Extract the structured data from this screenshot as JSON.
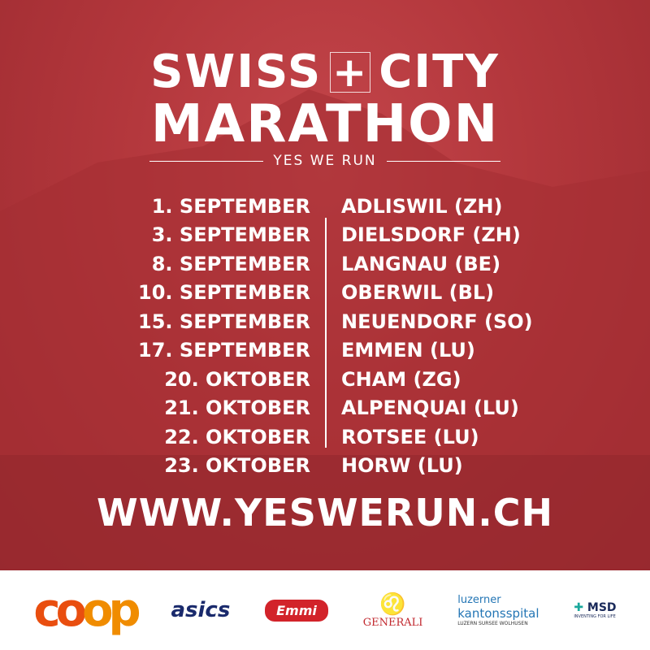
{
  "title": {
    "line1_left": "SWISS",
    "line1_right": "CITY",
    "cross": "+",
    "line2": "MARATHON",
    "tagline": "YES WE RUN"
  },
  "events": [
    {
      "date": "1. SEPTEMBER",
      "location": "ADLISWIL (ZH)"
    },
    {
      "date": "3. SEPTEMBER",
      "location": "DIELSDORF (ZH)"
    },
    {
      "date": "8. SEPTEMBER",
      "location": "LANGNAU (BE)"
    },
    {
      "date": "10. SEPTEMBER",
      "location": "OBERWIL (BL)"
    },
    {
      "date": "15. SEPTEMBER",
      "location": "NEUENDORF (SO)"
    },
    {
      "date": "17. SEPTEMBER",
      "location": "EMMEN (LU)"
    },
    {
      "date": "20. OKTOBER",
      "location": "CHAM (ZG)"
    },
    {
      "date": "21. OKTOBER",
      "location": "ALPENQUAI (LU)"
    },
    {
      "date": "22. OKTOBER",
      "location": "ROTSEE (LU)"
    },
    {
      "date": "23. OKTOBER",
      "location": "HORW (LU)"
    }
  ],
  "url": "WWW.YESWERUN.CH",
  "sponsors": {
    "coop": "coop",
    "asics": "asics",
    "emmi": "Emmi",
    "generali": "GENERALI",
    "luzerner_1": "luzerner",
    "luzerner_2": "kantonsspital",
    "luzerner_3": "LUZERN SURSEE WOLHUSEN",
    "msd": "MSD",
    "msd_sub": "INVENTING FOR LIFE"
  },
  "colors": {
    "background_red": "#b3373c",
    "text": "#ffffff"
  }
}
